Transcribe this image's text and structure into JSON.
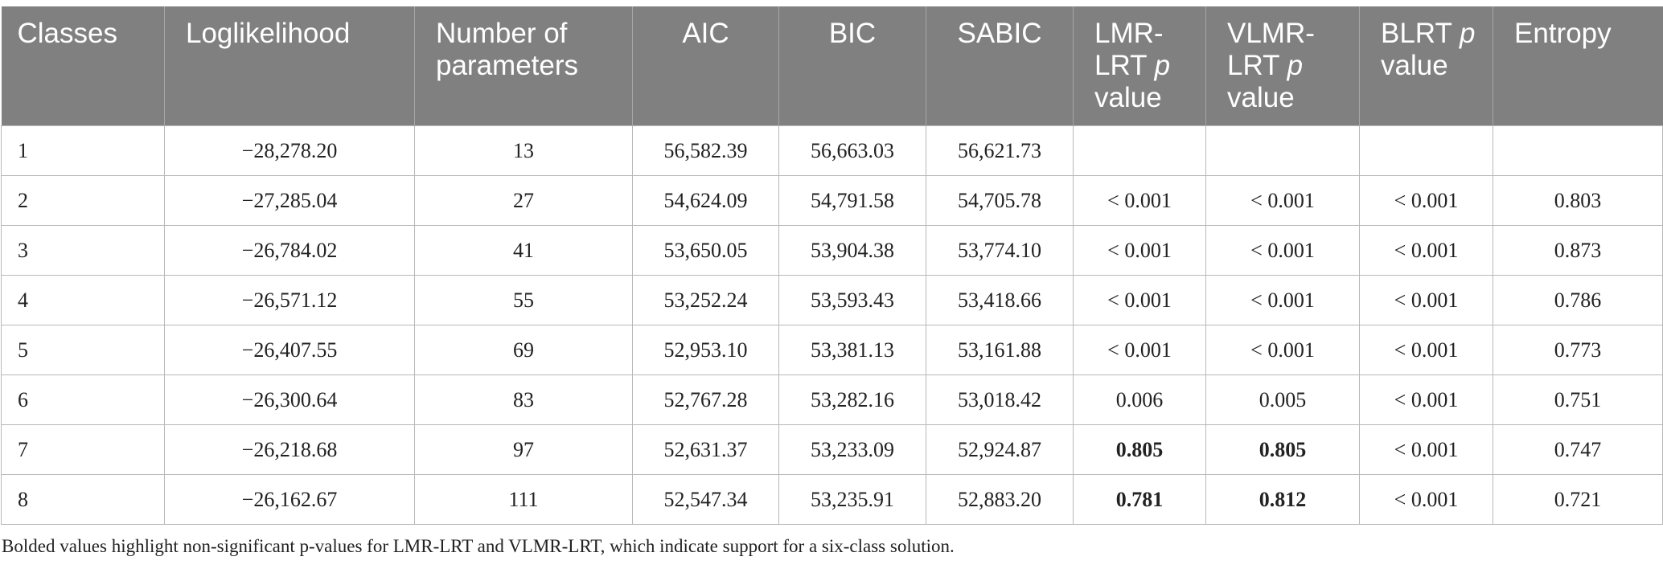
{
  "table": {
    "headers": [
      {
        "key": "classes",
        "parts": [
          {
            "t": "Classes"
          }
        ]
      },
      {
        "key": "loglikelihood",
        "parts": [
          {
            "t": "Loglikelihood"
          }
        ]
      },
      {
        "key": "num_params",
        "parts": [
          {
            "t": "Number of parameters"
          }
        ]
      },
      {
        "key": "aic",
        "parts": [
          {
            "t": "AIC"
          }
        ]
      },
      {
        "key": "bic",
        "parts": [
          {
            "t": "BIC"
          }
        ]
      },
      {
        "key": "sabic",
        "parts": [
          {
            "t": "SABIC"
          }
        ]
      },
      {
        "key": "lmr_lrt",
        "parts": [
          {
            "t": "LMR-LRT "
          },
          {
            "t": "p",
            "i": true
          },
          {
            "t": " value"
          }
        ]
      },
      {
        "key": "vlmr_lrt",
        "parts": [
          {
            "t": "VLMR-LRT "
          },
          {
            "t": "p",
            "i": true
          },
          {
            "t": " value"
          }
        ]
      },
      {
        "key": "blrt",
        "parts": [
          {
            "t": "BLRT "
          },
          {
            "t": "p",
            "i": true
          },
          {
            "t": " value"
          }
        ]
      },
      {
        "key": "entropy",
        "parts": [
          {
            "t": "Entropy"
          }
        ]
      }
    ],
    "rows": [
      [
        "1",
        "−28,278.20",
        "13",
        "56,582.39",
        "56,663.03",
        "56,621.73",
        "",
        "",
        "",
        ""
      ],
      [
        "2",
        "−27,285.04",
        "27",
        "54,624.09",
        "54,791.58",
        "54,705.78",
        "< 0.001",
        "< 0.001",
        "< 0.001",
        "0.803"
      ],
      [
        "3",
        "−26,784.02",
        "41",
        "53,650.05",
        "53,904.38",
        "53,774.10",
        "< 0.001",
        "< 0.001",
        "< 0.001",
        "0.873"
      ],
      [
        "4",
        "−26,571.12",
        "55",
        "53,252.24",
        "53,593.43",
        "53,418.66",
        "< 0.001",
        "< 0.001",
        "< 0.001",
        "0.786"
      ],
      [
        "5",
        "−26,407.55",
        "69",
        "52,953.10",
        "53,381.13",
        "53,161.88",
        "< 0.001",
        "< 0.001",
        "< 0.001",
        "0.773"
      ],
      [
        "6",
        "−26,300.64",
        "83",
        "52,767.28",
        "53,282.16",
        "53,018.42",
        "0.006",
        "0.005",
        "< 0.001",
        "0.751"
      ],
      [
        "7",
        "−26,218.68",
        "97",
        "52,631.37",
        "53,233.09",
        "52,924.87",
        "0.805",
        "0.805",
        "< 0.001",
        "0.747"
      ],
      [
        "8",
        "−26,162.67",
        "111",
        "52,547.34",
        "53,235.91",
        "52,883.20",
        "0.781",
        "0.812",
        "< 0.001",
        "0.721"
      ]
    ],
    "bold_cells": [
      [
        6,
        6
      ],
      [
        6,
        7
      ],
      [
        7,
        6
      ],
      [
        7,
        7
      ]
    ]
  },
  "footnote": "Bolded values highlight non-significant p-values for LMR-LRT and VLMR-LRT, which indicate support for a six-class solution."
}
